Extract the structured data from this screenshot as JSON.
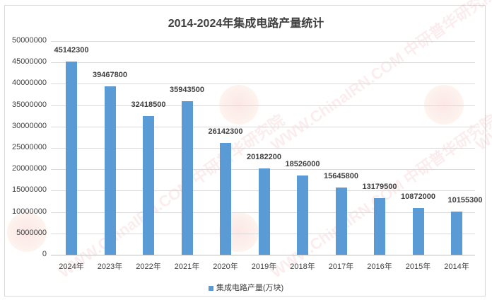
{
  "chart_data": {
    "type": "bar",
    "title": "2014-2024年集成电路产量统计",
    "xlabel": "",
    "ylabel": "",
    "categories": [
      "2024年",
      "2023年",
      "2022年",
      "2021年",
      "2020年",
      "2019年",
      "2018年",
      "2017年",
      "2016年",
      "2015年",
      "2014年"
    ],
    "series": [
      {
        "name": "集成电路产量(万块)",
        "color": "#5b9bd5",
        "values": [
          45142300,
          39467800,
          32418500,
          35943500,
          26142300,
          20182200,
          18526000,
          15645800,
          13179500,
          10872000,
          10155300
        ]
      }
    ],
    "value_labels": [
      "45142300",
      "39467800",
      "32418500",
      "35943500",
      "26142300",
      "20182200",
      "18526000",
      "15645800",
      "13179500",
      "10872000",
      "10155300"
    ],
    "ylim": [
      0,
      50000000
    ],
    "yticks": [
      0,
      5000000,
      10000000,
      15000000,
      20000000,
      25000000,
      30000000,
      35000000,
      40000000,
      45000000,
      50000000
    ],
    "ytick_labels": [
      "0",
      "5000000",
      "10000000",
      "15000000",
      "20000000",
      "25000000",
      "30000000",
      "35000000",
      "40000000",
      "45000000",
      "50000000"
    ],
    "grid": true,
    "legend_position": "bottom"
  },
  "watermark": {
    "text": "WWW.ChinaIRN.COM 中研普华研究院",
    "logo": "CIRN"
  }
}
